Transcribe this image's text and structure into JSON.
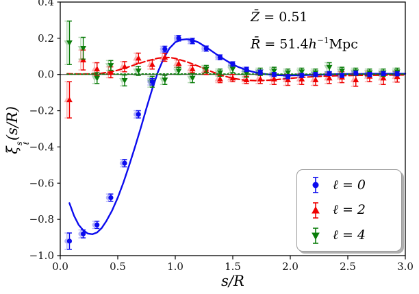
{
  "figure": {
    "annotation": {
      "z_letter": "Z̄",
      "z_rest": " = 0.51",
      "r_letter": "R̄",
      "r_mid": " = 51.4",
      "h_letter": "h",
      "h_sup": "−1",
      "unit": "Mpc"
    },
    "xlabel": "s/R",
    "ylabel": {
      "base": "ξ",
      "sup": "s",
      "sub": "ℓ",
      "rest": "(s/R)"
    }
  },
  "chart_data": {
    "type": "scatter",
    "subtype": "errorbar-with-model-curves",
    "title": "",
    "xlabel": "s/R",
    "ylabel": "ξ_ℓ^s(s/R)",
    "xlim": [
      0.0,
      3.0
    ],
    "ylim": [
      -1.0,
      0.4
    ],
    "grid": false,
    "zero_line": true,
    "legend_position": "lower right",
    "annotations": [
      "Z̄ = 0.51",
      "R̄ = 51.4h⁻¹Mpc"
    ],
    "xticks": [
      {
        "v": 0.0,
        "label": "0.0"
      },
      {
        "v": 0.5,
        "label": "0.5"
      },
      {
        "v": 1.0,
        "label": "1.0"
      },
      {
        "v": 1.5,
        "label": "1.5"
      },
      {
        "v": 2.0,
        "label": "2.0"
      },
      {
        "v": 2.5,
        "label": "2.5"
      },
      {
        "v": 3.0,
        "label": "3.0"
      }
    ],
    "yticks": [
      {
        "v": 0.4,
        "label": "0.4"
      },
      {
        "v": 0.2,
        "label": "0.2"
      },
      {
        "v": 0.0,
        "label": "0.0"
      },
      {
        "v": -0.2,
        "label": "−0.2"
      },
      {
        "v": -0.4,
        "label": "−0.4"
      },
      {
        "v": -0.6,
        "label": "−0.6"
      },
      {
        "v": -0.8,
        "label": "−0.8"
      },
      {
        "v": -1.0,
        "label": "−1.0"
      }
    ],
    "series": [
      {
        "id": "l0",
        "name": "ℓ = 0",
        "color": "#0b0bee",
        "marker": "circle",
        "linestyle": "solid",
        "line_width": 2.4,
        "x": [
          0.08,
          0.2,
          0.32,
          0.44,
          0.56,
          0.68,
          0.8,
          0.91,
          1.03,
          1.15,
          1.27,
          1.39,
          1.5,
          1.62,
          1.74,
          1.86,
          1.98,
          2.1,
          2.22,
          2.34,
          2.45,
          2.57,
          2.69,
          2.81,
          2.93
        ],
        "y": [
          -0.92,
          -0.88,
          -0.83,
          -0.68,
          -0.49,
          -0.22,
          -0.04,
          0.14,
          0.2,
          0.185,
          0.143,
          0.095,
          0.058,
          0.028,
          0.012,
          0.0,
          -0.012,
          -0.005,
          0.0,
          0.005,
          -0.005,
          0.008,
          0.0,
          0.005,
          0.004
        ],
        "yerr": [
          0.045,
          0.022,
          0.02,
          0.02,
          0.02,
          0.02,
          0.018,
          0.016,
          0.015,
          0.015,
          0.014,
          0.013,
          0.012,
          0.012,
          0.012,
          0.011,
          0.011,
          0.011,
          0.011,
          0.011,
          0.011,
          0.011,
          0.011,
          0.011,
          0.011
        ],
        "curve": [
          [
            0.08,
            -0.71
          ],
          [
            0.12,
            -0.78
          ],
          [
            0.16,
            -0.83
          ],
          [
            0.2,
            -0.86
          ],
          [
            0.24,
            -0.878
          ],
          [
            0.28,
            -0.882
          ],
          [
            0.32,
            -0.872
          ],
          [
            0.36,
            -0.848
          ],
          [
            0.4,
            -0.81
          ],
          [
            0.45,
            -0.752
          ],
          [
            0.5,
            -0.68
          ],
          [
            0.55,
            -0.595
          ],
          [
            0.6,
            -0.5
          ],
          [
            0.65,
            -0.4
          ],
          [
            0.7,
            -0.295
          ],
          [
            0.75,
            -0.185
          ],
          [
            0.8,
            -0.08
          ],
          [
            0.85,
            0.015
          ],
          [
            0.9,
            0.09
          ],
          [
            0.95,
            0.145
          ],
          [
            1.0,
            0.178
          ],
          [
            1.05,
            0.192
          ],
          [
            1.1,
            0.195
          ],
          [
            1.15,
            0.19
          ],
          [
            1.2,
            0.178
          ],
          [
            1.25,
            0.158
          ],
          [
            1.3,
            0.137
          ],
          [
            1.35,
            0.115
          ],
          [
            1.4,
            0.094
          ],
          [
            1.45,
            0.074
          ],
          [
            1.5,
            0.056
          ],
          [
            1.55,
            0.041
          ],
          [
            1.6,
            0.029
          ],
          [
            1.65,
            0.019
          ],
          [
            1.7,
            0.011
          ],
          [
            1.75,
            0.005
          ],
          [
            1.8,
            0.001
          ],
          [
            1.85,
            -0.002
          ],
          [
            1.9,
            -0.004
          ],
          [
            1.95,
            -0.005
          ],
          [
            2.0,
            -0.005
          ],
          [
            2.1,
            -0.004
          ],
          [
            2.2,
            -0.002
          ],
          [
            2.3,
            0.0
          ],
          [
            2.4,
            0.002
          ],
          [
            2.5,
            0.003
          ],
          [
            2.6,
            0.003
          ],
          [
            2.7,
            0.004
          ],
          [
            2.8,
            0.004
          ],
          [
            2.9,
            0.004
          ],
          [
            3.0,
            0.004
          ]
        ]
      },
      {
        "id": "l2",
        "name": "ℓ = 2",
        "color": "#ee0000",
        "marker": "triangle-up",
        "linestyle": "dashed",
        "line_width": 2.1,
        "x": [
          0.08,
          0.2,
          0.32,
          0.44,
          0.56,
          0.68,
          0.8,
          0.91,
          1.03,
          1.15,
          1.27,
          1.39,
          1.5,
          1.62,
          1.74,
          1.86,
          1.98,
          2.1,
          2.22,
          2.34,
          2.45,
          2.57,
          2.69,
          2.81,
          2.93
        ],
        "y": [
          -0.14,
          0.08,
          0.03,
          0.012,
          0.043,
          0.09,
          0.055,
          0.095,
          0.06,
          0.03,
          0.02,
          -0.025,
          -0.02,
          -0.03,
          -0.025,
          -0.025,
          -0.03,
          -0.025,
          -0.03,
          -0.02,
          -0.015,
          -0.03,
          -0.01,
          -0.02,
          -0.012
        ],
        "yerr": [
          0.1,
          0.055,
          0.035,
          0.03,
          0.028,
          0.028,
          0.025,
          0.022,
          0.02,
          0.02,
          0.02,
          0.02,
          0.02,
          0.02,
          0.025,
          0.03,
          0.03,
          0.03,
          0.03,
          0.03,
          0.03,
          0.035,
          0.03,
          0.035,
          0.03
        ],
        "curve": [
          [
            0.06,
            0.004
          ],
          [
            0.15,
            0.003
          ],
          [
            0.25,
            0.003
          ],
          [
            0.35,
            0.006
          ],
          [
            0.45,
            0.015
          ],
          [
            0.55,
            0.032
          ],
          [
            0.65,
            0.054
          ],
          [
            0.75,
            0.074
          ],
          [
            0.85,
            0.09
          ],
          [
            0.9,
            0.094
          ],
          [
            0.95,
            0.094
          ],
          [
            1.0,
            0.089
          ],
          [
            1.1,
            0.07
          ],
          [
            1.2,
            0.046
          ],
          [
            1.3,
            0.02
          ],
          [
            1.4,
            -0.004
          ],
          [
            1.5,
            -0.021
          ],
          [
            1.6,
            -0.031
          ],
          [
            1.7,
            -0.034
          ],
          [
            1.8,
            -0.032
          ],
          [
            1.9,
            -0.027
          ],
          [
            2.0,
            -0.021
          ],
          [
            2.1,
            -0.016
          ],
          [
            2.2,
            -0.012
          ],
          [
            2.3,
            -0.009
          ],
          [
            2.4,
            -0.007
          ],
          [
            2.5,
            -0.006
          ],
          [
            2.6,
            -0.005
          ],
          [
            2.7,
            -0.004
          ],
          [
            2.8,
            -0.004
          ],
          [
            2.9,
            -0.003
          ],
          [
            3.0,
            -0.003
          ]
        ]
      },
      {
        "id": "l4",
        "name": "ℓ = 4",
        "color": "#0a7d0a",
        "marker": "triangle-down",
        "linestyle": "dotted",
        "line_width": 1.9,
        "x": [
          0.08,
          0.2,
          0.32,
          0.44,
          0.56,
          0.68,
          0.8,
          0.91,
          1.03,
          1.15,
          1.27,
          1.39,
          1.5,
          1.62,
          1.74,
          1.86,
          1.98,
          2.1,
          2.22,
          2.34,
          2.45,
          2.57,
          2.69,
          2.81,
          2.93
        ],
        "y": [
          0.175,
          0.145,
          -0.02,
          0.05,
          -0.033,
          0.02,
          -0.04,
          -0.03,
          0.02,
          -0.02,
          0.03,
          0.01,
          0.03,
          0.005,
          0.015,
          0.02,
          0.01,
          0.015,
          0.01,
          0.04,
          0.02,
          0.015,
          0.01,
          0.01,
          0.015
        ],
        "yerr": [
          0.12,
          0.06,
          0.03,
          0.027,
          0.03,
          0.025,
          0.03,
          0.025,
          0.02,
          0.025,
          0.02,
          0.02,
          0.02,
          0.02,
          0.02,
          0.02,
          0.02,
          0.02,
          0.02,
          0.025,
          0.02,
          0.02,
          0.02,
          0.02,
          0.02
        ],
        "curve": [
          [
            0.06,
            0.002
          ],
          [
            1.0,
            0.003
          ],
          [
            2.0,
            0.002
          ],
          [
            3.0,
            0.002
          ]
        ]
      }
    ]
  }
}
